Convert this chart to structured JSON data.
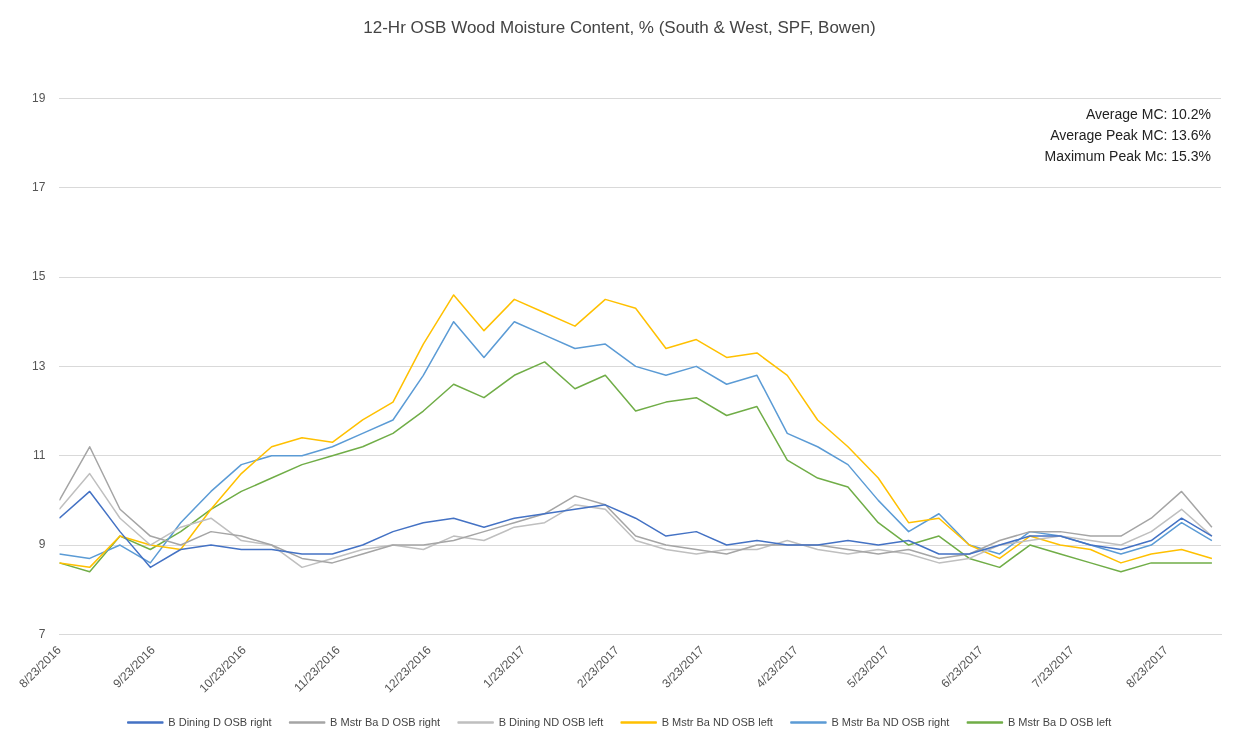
{
  "chart_data": {
    "type": "line",
    "title": "12-Hr OSB Wood Moisture Content, % (South & West, SPF, Bowen)",
    "x": [
      "2016-08-23",
      "2016-09-02",
      "2016-09-12",
      "2016-09-22",
      "2016-10-02",
      "2016-10-12",
      "2016-10-22",
      "2016-11-01",
      "2016-11-11",
      "2016-11-21",
      "2016-12-01",
      "2016-12-11",
      "2016-12-21",
      "2016-12-31",
      "2017-01-10",
      "2017-01-20",
      "2017-01-30",
      "2017-02-09",
      "2017-02-19",
      "2017-03-01",
      "2017-03-11",
      "2017-03-21",
      "2017-03-31",
      "2017-04-10",
      "2017-04-20",
      "2017-04-30",
      "2017-05-10",
      "2017-05-20",
      "2017-05-30",
      "2017-06-09",
      "2017-06-19",
      "2017-06-29",
      "2017-07-09",
      "2017-07-19",
      "2017-07-29",
      "2017-08-08",
      "2017-08-18",
      "2017-08-28",
      "2017-09-07"
    ],
    "series": [
      {
        "name": "B Dining D OSB right",
        "color": "#4472c4",
        "values": [
          9.6,
          10.2,
          9.3,
          8.5,
          8.9,
          9.0,
          8.9,
          8.9,
          8.8,
          8.8,
          9.0,
          9.3,
          9.5,
          9.6,
          9.4,
          9.6,
          9.7,
          9.8,
          9.9,
          9.6,
          9.2,
          9.3,
          9.0,
          9.1,
          9.0,
          9.0,
          9.1,
          9.0,
          9.1,
          8.8,
          8.8,
          9.0,
          9.2,
          9.2,
          9.0,
          8.9,
          9.1,
          9.6,
          9.2
        ]
      },
      {
        "name": "B Mstr Ba D OSB right",
        "color": "#a5a5a5",
        "values": [
          10.0,
          11.2,
          9.8,
          9.2,
          9.0,
          9.3,
          9.2,
          9.0,
          8.7,
          8.6,
          8.8,
          9.0,
          9.0,
          9.1,
          9.3,
          9.5,
          9.7,
          10.1,
          9.9,
          9.2,
          9.0,
          8.9,
          8.8,
          9.0,
          9.0,
          9.0,
          8.9,
          8.8,
          8.9,
          8.7,
          8.8,
          9.1,
          9.3,
          9.3,
          9.2,
          9.2,
          9.6,
          10.2,
          9.4
        ]
      },
      {
        "name": "B Dining ND OSB left",
        "color": "#bfbfbf",
        "values": [
          9.8,
          10.6,
          9.6,
          9.0,
          9.4,
          9.6,
          9.1,
          9.0,
          8.5,
          8.7,
          8.9,
          9.0,
          8.9,
          9.2,
          9.1,
          9.4,
          9.5,
          9.9,
          9.8,
          9.1,
          8.9,
          8.8,
          8.9,
          8.9,
          9.1,
          8.9,
          8.8,
          8.9,
          8.8,
          8.6,
          8.7,
          9.0,
          9.1,
          9.2,
          9.1,
          9.0,
          9.3,
          9.8,
          9.2
        ]
      },
      {
        "name": "B Mstr Ba ND OSB left",
        "color": "#ffc000",
        "values": [
          8.6,
          8.5,
          9.2,
          9.0,
          8.9,
          9.8,
          10.6,
          11.2,
          11.4,
          11.3,
          11.8,
          12.2,
          13.5,
          14.6,
          13.8,
          14.5,
          14.2,
          13.9,
          14.5,
          14.3,
          13.4,
          13.6,
          13.2,
          13.3,
          12.8,
          11.8,
          11.2,
          10.5,
          9.5,
          9.6,
          9.0,
          8.7,
          9.2,
          9.0,
          8.9,
          8.6,
          8.8,
          8.9,
          8.7
        ]
      },
      {
        "name": "B Mstr Ba ND OSB right",
        "color": "#5b9bd5",
        "values": [
          8.8,
          8.7,
          9.0,
          8.6,
          9.5,
          10.2,
          10.8,
          11.0,
          11.0,
          11.2,
          11.5,
          11.8,
          12.8,
          14.0,
          13.2,
          14.0,
          13.7,
          13.4,
          13.5,
          13.0,
          12.8,
          13.0,
          12.6,
          12.8,
          11.5,
          11.2,
          10.8,
          10.0,
          9.3,
          9.7,
          9.0,
          8.8,
          9.3,
          9.2,
          9.0,
          8.8,
          9.0,
          9.5,
          9.1
        ]
      },
      {
        "name": "B Mstr Ba D OSB left",
        "color": "#70ad47",
        "values": [
          8.6,
          8.4,
          9.2,
          8.9,
          9.3,
          9.8,
          10.2,
          10.5,
          10.8,
          11.0,
          11.2,
          11.5,
          12.0,
          12.6,
          12.3,
          12.8,
          13.1,
          12.5,
          12.8,
          12.0,
          12.2,
          12.3,
          11.9,
          12.1,
          10.9,
          10.5,
          10.3,
          9.5,
          9.0,
          9.2,
          8.7,
          8.5,
          9.0,
          8.8,
          8.6,
          8.4,
          8.6,
          8.6,
          8.6
        ]
      }
    ],
    "xlim": [
      "2016-08-23",
      "2017-09-10"
    ],
    "xticks": [
      {
        "value": "2016-08-23",
        "label": "8/23/2016"
      },
      {
        "value": "2016-09-23",
        "label": "9/23/2016"
      },
      {
        "value": "2016-10-23",
        "label": "10/23/2016"
      },
      {
        "value": "2016-11-23",
        "label": "11/23/2016"
      },
      {
        "value": "2016-12-23",
        "label": "12/23/2016"
      },
      {
        "value": "2017-01-23",
        "label": "1/23/2017"
      },
      {
        "value": "2017-02-23",
        "label": "2/23/2017"
      },
      {
        "value": "2017-03-23",
        "label": "3/23/2017"
      },
      {
        "value": "2017-04-23",
        "label": "4/23/2017"
      },
      {
        "value": "2017-05-23",
        "label": "5/23/2017"
      },
      {
        "value": "2017-06-23",
        "label": "6/23/2017"
      },
      {
        "value": "2017-07-23",
        "label": "7/23/2017"
      },
      {
        "value": "2017-08-23",
        "label": "8/23/2017"
      }
    ],
    "ylim": [
      7,
      19
    ],
    "yticks": [
      7,
      9,
      11,
      13,
      15,
      17,
      19
    ],
    "annotations": [
      "Average MC: 10.2%",
      "Average Peak MC: 13.6%",
      "Maximum Peak Mc: 15.3%"
    ],
    "grid": "y",
    "legend": "bottom",
    "marker": "none",
    "line_style": "solid"
  }
}
